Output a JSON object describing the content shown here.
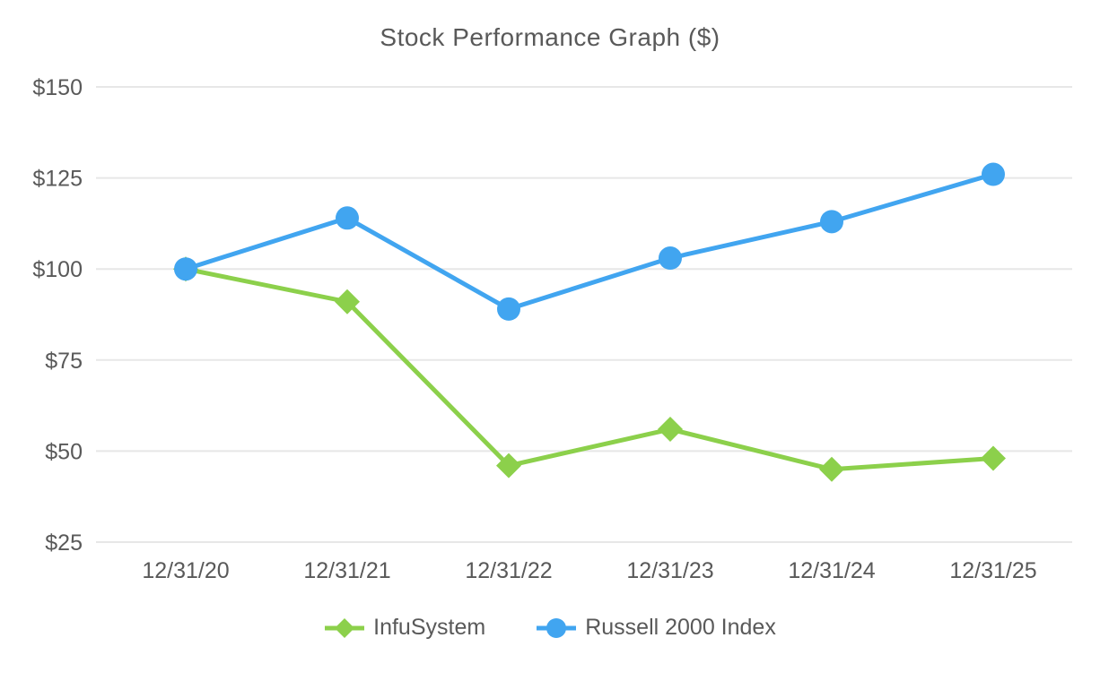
{
  "chart_data": {
    "type": "line",
    "title": "Stock Performance Graph ($)",
    "categories": [
      "12/31/20",
      "12/31/21",
      "12/31/22",
      "12/31/23",
      "12/31/24",
      "12/31/25"
    ],
    "series": [
      {
        "name": "InfuSystem",
        "marker": "diamond",
        "color": "#8CD04B",
        "values": [
          100,
          91,
          46,
          56,
          45,
          48
        ]
      },
      {
        "name": "Russell 2000 Index",
        "marker": "circle",
        "color": "#41A5F0",
        "values": [
          100,
          114,
          89,
          103,
          113,
          126
        ]
      }
    ],
    "ylim": [
      25,
      150
    ],
    "y_tick_step": 25,
    "y_tick_prefix": "$",
    "y_tick_labels": [
      "$150",
      "$125",
      "$100",
      "$75",
      "$50",
      "$25"
    ],
    "grid": "horizontal-only",
    "legend_position": "bottom",
    "colors": {
      "grid": "#E7E7E7",
      "axis_text": "#595959",
      "title_text": "#595959",
      "background": "#FFFFFF"
    }
  }
}
